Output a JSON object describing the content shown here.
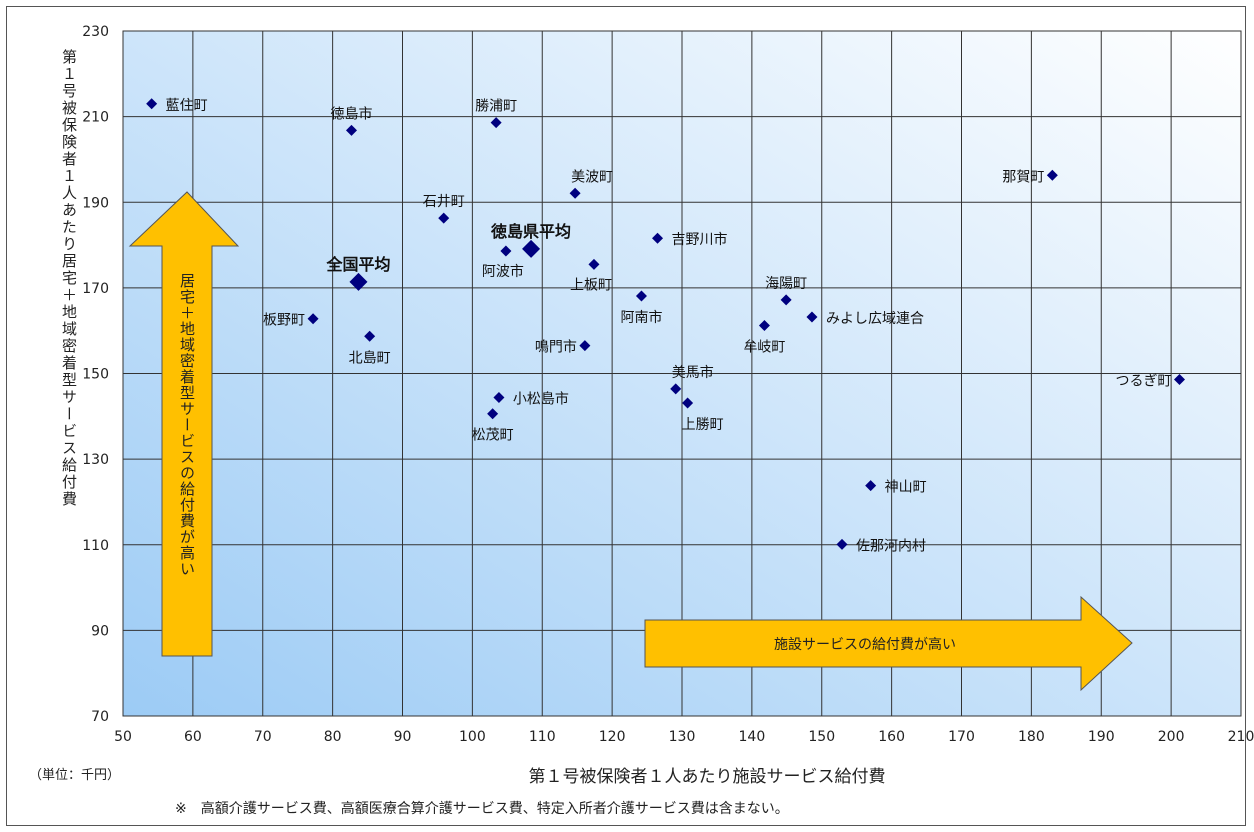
{
  "chart_data": {
    "type": "scatter",
    "xlabel": "第１号被保険者１人あたり施設サービス給付費",
    "ylabel": "第１号被保険者１人あたり居宅＋地域密着型サービス給付費",
    "unit_note": "（単位：千円）",
    "footnote": "※　高額介護サービス費、高額医療合算介護サービス費、特定入所者介護サービス費は含まない。",
    "xlim": [
      50,
      210
    ],
    "ylim": [
      70,
      230
    ],
    "x_ticks": [
      50,
      60,
      70,
      80,
      90,
      100,
      110,
      120,
      130,
      140,
      150,
      160,
      170,
      180,
      190,
      200,
      210
    ],
    "y_ticks": [
      70,
      90,
      110,
      130,
      150,
      170,
      190,
      210,
      230
    ],
    "grid": true,
    "marker_color": "#00007f",
    "background_gradient": [
      "#9ccbf5",
      "#ffffff"
    ],
    "arrow_color": "#ffc000",
    "arrows": {
      "vertical_label": "居宅＋地域密着型サービスの給付費が高い",
      "horizontal_label": "施設サービスの給付費が高い"
    },
    "points": [
      {
        "label": "藍住町",
        "x": 54.1,
        "y": 213.0,
        "label_pos": "right"
      },
      {
        "label": "徳島市",
        "x": 82.7,
        "y": 206.8,
        "label_pos": "above"
      },
      {
        "label": "勝浦町",
        "x": 103.4,
        "y": 208.6,
        "label_pos": "above"
      },
      {
        "label": "美波町",
        "x": 114.7,
        "y": 192.1,
        "label_pos": "above-right"
      },
      {
        "label": "那賀町",
        "x": 183.0,
        "y": 196.3,
        "label_pos": "left"
      },
      {
        "label": "石井町",
        "x": 95.9,
        "y": 186.3,
        "label_pos": "above"
      },
      {
        "label": "吉野川市",
        "x": 126.5,
        "y": 181.6,
        "label_pos": "right"
      },
      {
        "label": "阿波市",
        "x": 104.8,
        "y": 178.6,
        "label_pos": "below-left"
      },
      {
        "label": "徳島県平均",
        "x": 108.4,
        "y": 179.1,
        "label_pos": "above",
        "highlight": true
      },
      {
        "label": "上板町",
        "x": 117.4,
        "y": 175.5,
        "label_pos": "below-left"
      },
      {
        "label": "全国平均",
        "x": 83.7,
        "y": 171.4,
        "label_pos": "above",
        "highlight": true
      },
      {
        "label": "海陽町",
        "x": 144.9,
        "y": 167.2,
        "label_pos": "above"
      },
      {
        "label": "阿南市",
        "x": 124.2,
        "y": 168.1,
        "label_pos": "below"
      },
      {
        "label": "みよし広域連合",
        "x": 148.6,
        "y": 163.2,
        "label_pos": "right"
      },
      {
        "label": "板野町",
        "x": 77.2,
        "y": 162.8,
        "label_pos": "left"
      },
      {
        "label": "牟岐町",
        "x": 141.8,
        "y": 161.2,
        "label_pos": "below"
      },
      {
        "label": "北島町",
        "x": 85.3,
        "y": 158.7,
        "label_pos": "below"
      },
      {
        "label": "鳴門市",
        "x": 116.1,
        "y": 156.5,
        "label_pos": "left"
      },
      {
        "label": "つるぎ町",
        "x": 201.2,
        "y": 148.6,
        "label_pos": "left"
      },
      {
        "label": "美馬市",
        "x": 129.1,
        "y": 146.4,
        "label_pos": "above-right"
      },
      {
        "label": "小松島市",
        "x": 103.8,
        "y": 144.4,
        "label_pos": "right"
      },
      {
        "label": "上勝町",
        "x": 130.8,
        "y": 143.1,
        "label_pos": "below-right"
      },
      {
        "label": "松茂町",
        "x": 102.9,
        "y": 140.6,
        "label_pos": "below"
      },
      {
        "label": "神山町",
        "x": 157.0,
        "y": 123.8,
        "label_pos": "right"
      },
      {
        "label": "佐那河内村",
        "x": 152.9,
        "y": 110.1,
        "label_pos": "right"
      }
    ]
  }
}
